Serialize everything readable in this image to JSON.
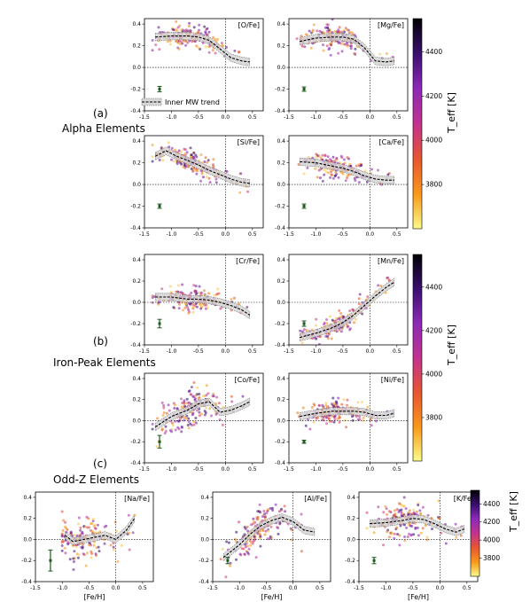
{
  "figure": {
    "groups": [
      {
        "letter": "(a)",
        "title": "Alpha Elements"
      },
      {
        "letter": "(b)",
        "title": "Iron-Peak Elements"
      },
      {
        "letter": "(c)",
        "title": "Odd-Z Elements"
      }
    ],
    "legend_label": "Inner MW trend",
    "colorbar_label": "T_eff [K]",
    "colorbar_range": [
      3600,
      4550
    ],
    "colorbar_colors": [
      "#000004",
      "#3b0f70",
      "#8c29b8",
      "#c2328f",
      "#e8562f",
      "#f99b1b",
      "#fcfc8a"
    ]
  },
  "chart_data": [
    {
      "type": "scatter",
      "element": "[O/Fe]",
      "xlabel": "",
      "xlim": [
        -1.5,
        0.7
      ],
      "ylim": [
        -0.4,
        0.45
      ],
      "xticks": [
        "-1.5",
        "-1.0",
        "-0.5",
        "0.0",
        "0.5"
      ],
      "yticks": [
        "-0.4",
        "-0.2",
        "0.0",
        "0.2",
        "0.4"
      ],
      "trend": {
        "x": [
          -1.3,
          -1.0,
          -0.7,
          -0.5,
          -0.3,
          -0.1,
          0.1,
          0.3,
          0.45
        ],
        "y": [
          0.28,
          0.29,
          0.29,
          0.28,
          0.25,
          0.17,
          0.09,
          0.06,
          0.05
        ]
      },
      "error_bar": {
        "x": -1.22,
        "y": -0.2,
        "err": 0.025
      }
    },
    {
      "type": "scatter",
      "element": "[Mg/Fe]",
      "xlabel": "",
      "xlim": [
        -1.5,
        0.7
      ],
      "ylim": [
        -0.4,
        0.45
      ],
      "xticks": [
        "-1.5",
        "-1.0",
        "-0.5",
        "0.0",
        "0.5"
      ],
      "yticks": [
        "-0.4",
        "-0.2",
        "0.0",
        "0.2",
        "0.4"
      ],
      "trend": {
        "x": [
          -1.3,
          -1.0,
          -0.7,
          -0.5,
          -0.3,
          -0.1,
          0.1,
          0.3,
          0.45
        ],
        "y": [
          0.24,
          0.27,
          0.28,
          0.28,
          0.26,
          0.18,
          0.06,
          0.05,
          0.06
        ]
      },
      "error_bar": {
        "x": -1.22,
        "y": -0.2,
        "err": 0.02
      }
    },
    {
      "type": "scatter",
      "element": "[Si/Fe]",
      "xlabel": "",
      "xlim": [
        -1.5,
        0.7
      ],
      "ylim": [
        -0.4,
        0.45
      ],
      "xticks": [
        "-1.5",
        "-1.0",
        "-0.5",
        "0.0",
        "0.5"
      ],
      "yticks": [
        "-0.4",
        "-0.2",
        "0.0",
        "0.2",
        "0.4"
      ],
      "trend": {
        "x": [
          -1.3,
          -1.1,
          -0.9,
          -0.7,
          -0.5,
          -0.3,
          -0.1,
          0.1,
          0.3,
          0.45
        ],
        "y": [
          0.26,
          0.31,
          0.26,
          0.22,
          0.18,
          0.13,
          0.09,
          0.05,
          0.02,
          0.01
        ]
      },
      "error_bar": {
        "x": -1.22,
        "y": -0.2,
        "err": 0.02
      }
    },
    {
      "type": "scatter",
      "element": "[Ca/Fe]",
      "xlabel": "",
      "xlim": [
        -1.5,
        0.7
      ],
      "ylim": [
        -0.4,
        0.45
      ],
      "xticks": [
        "-1.5",
        "-1.0",
        "-0.5",
        "0.0",
        "0.5"
      ],
      "yticks": [
        "-0.4",
        "-0.2",
        "0.0",
        "0.2",
        "0.4"
      ],
      "trend": {
        "x": [
          -1.3,
          -1.0,
          -0.7,
          -0.5,
          -0.3,
          -0.1,
          0.1,
          0.3,
          0.45
        ],
        "y": [
          0.21,
          0.2,
          0.17,
          0.15,
          0.12,
          0.08,
          0.05,
          0.04,
          0.04
        ]
      },
      "error_bar": {
        "x": -1.22,
        "y": -0.2,
        "err": 0.02
      }
    },
    {
      "type": "scatter",
      "element": "[Cr/Fe]",
      "xlabel": "",
      "xlim": [
        -1.5,
        0.7
      ],
      "ylim": [
        -0.4,
        0.45
      ],
      "xticks": [
        "-1.5",
        "-1.0",
        "-0.5",
        "0.0",
        "0.5"
      ],
      "yticks": [
        "-0.4",
        "-0.2",
        "0.0",
        "0.2",
        "0.4"
      ],
      "trend": {
        "x": [
          -1.3,
          -1.0,
          -0.7,
          -0.5,
          -0.3,
          -0.1,
          0.1,
          0.3,
          0.45
        ],
        "y": [
          0.05,
          0.05,
          0.03,
          0.03,
          0.02,
          0.0,
          -0.03,
          -0.07,
          -0.12
        ]
      },
      "error_bar": {
        "x": -1.22,
        "y": -0.2,
        "err": 0.04
      }
    },
    {
      "type": "scatter",
      "element": "[Mn/Fe]",
      "xlabel": "",
      "xlim": [
        -1.5,
        0.7
      ],
      "ylim": [
        -0.4,
        0.45
      ],
      "xticks": [
        "-1.5",
        "-1.0",
        "-0.5",
        "0.0",
        "0.5"
      ],
      "yticks": [
        "-0.4",
        "-0.2",
        "0.0",
        "0.2",
        "0.4"
      ],
      "trend": {
        "x": [
          -1.3,
          -1.0,
          -0.7,
          -0.5,
          -0.3,
          -0.1,
          0.1,
          0.3,
          0.45
        ],
        "y": [
          -0.33,
          -0.29,
          -0.24,
          -0.19,
          -0.12,
          -0.03,
          0.06,
          0.14,
          0.19
        ]
      },
      "error_bar": {
        "x": -1.22,
        "y": -0.2,
        "err": 0.025
      }
    },
    {
      "type": "scatter",
      "element": "[Co/Fe]",
      "xlabel": "",
      "xlim": [
        -1.5,
        0.7
      ],
      "ylim": [
        -0.4,
        0.45
      ],
      "xticks": [
        "-1.5",
        "-1.0",
        "-0.5",
        "0.0",
        "0.5"
      ],
      "yticks": [
        "-0.4",
        "-0.2",
        "0.0",
        "0.2",
        "0.4"
      ],
      "trend": {
        "x": [
          -1.3,
          -1.0,
          -0.7,
          -0.5,
          -0.3,
          -0.1,
          0.1,
          0.3,
          0.45
        ],
        "y": [
          -0.06,
          0.04,
          0.1,
          0.16,
          0.18,
          0.08,
          0.1,
          0.14,
          0.18
        ]
      },
      "error_bar": {
        "x": -1.22,
        "y": -0.2,
        "err": 0.06
      }
    },
    {
      "type": "scatter",
      "element": "[Ni/Fe]",
      "xlabel": "",
      "xlim": [
        -1.5,
        0.7
      ],
      "ylim": [
        -0.4,
        0.45
      ],
      "xticks": [
        "-1.5",
        "-1.0",
        "-0.5",
        "0.0",
        "0.5"
      ],
      "yticks": [
        "-0.4",
        "-0.2",
        "0.0",
        "0.2",
        "0.4"
      ],
      "trend": {
        "x": [
          -1.3,
          -1.0,
          -0.7,
          -0.5,
          -0.3,
          -0.1,
          0.1,
          0.3,
          0.45
        ],
        "y": [
          0.04,
          0.07,
          0.09,
          0.09,
          0.09,
          0.08,
          0.05,
          0.05,
          0.07
        ]
      },
      "error_bar": {
        "x": -1.22,
        "y": -0.2,
        "err": 0.015
      }
    },
    {
      "type": "scatter",
      "element": "[Na/Fe]",
      "xlabel": "[Fe/H]",
      "xlim": [
        -1.5,
        0.7
      ],
      "ylim": [
        -0.4,
        0.45
      ],
      "xticks": [
        "-1.5",
        "-1.0",
        "-0.5",
        "0.0",
        "0.5"
      ],
      "yticks": [
        "-0.4",
        "-0.2",
        "0.0",
        "0.2",
        "0.4"
      ],
      "trend": {
        "x": [
          -0.95,
          -0.8,
          -0.6,
          -0.4,
          -0.2,
          0.0,
          0.2,
          0.35
        ],
        "y": [
          0.04,
          -0.02,
          0.0,
          0.02,
          0.04,
          0.0,
          0.09,
          0.2
        ]
      },
      "error_bar": {
        "x": -1.22,
        "y": -0.2,
        "err": 0.1
      }
    },
    {
      "type": "scatter",
      "element": "[Al/Fe]",
      "xlabel": "[Fe/H]",
      "xlim": [
        -1.5,
        0.7
      ],
      "ylim": [
        -0.4,
        0.45
      ],
      "xticks": [
        "-1.5",
        "-1.0",
        "-0.5",
        "0.0",
        "0.5"
      ],
      "yticks": [
        "-0.4",
        "-0.2",
        "0.0",
        "0.2",
        "0.4"
      ],
      "trend": {
        "x": [
          -1.3,
          -1.0,
          -0.8,
          -0.6,
          -0.4,
          -0.2,
          0.0,
          0.2,
          0.4
        ],
        "y": [
          -0.17,
          -0.05,
          0.05,
          0.13,
          0.18,
          0.21,
          0.17,
          0.09,
          0.07
        ]
      },
      "error_bar": {
        "x": -1.22,
        "y": -0.2,
        "err": 0.03
      }
    },
    {
      "type": "scatter",
      "element": "[K/Fe]",
      "xlabel": "[Fe/H]",
      "xlim": [
        -1.5,
        0.7
      ],
      "ylim": [
        -0.4,
        0.45
      ],
      "xticks": [
        "-1.5",
        "-1.0",
        "-0.5",
        "0.0",
        "0.5"
      ],
      "yticks": [
        "-0.4",
        "-0.2",
        "0.0",
        "0.2",
        "0.4"
      ],
      "trend": {
        "x": [
          -1.3,
          -1.0,
          -0.7,
          -0.5,
          -0.3,
          -0.1,
          0.1,
          0.3,
          0.45
        ],
        "y": [
          0.15,
          0.16,
          0.18,
          0.2,
          0.19,
          0.15,
          0.1,
          0.07,
          0.1
        ]
      },
      "error_bar": {
        "x": -1.22,
        "y": -0.2,
        "err": 0.03
      }
    }
  ],
  "colorbars": [
    {
      "ticks": [
        "4400",
        "4200",
        "4000",
        "3800"
      ],
      "tick_values": [
        4400,
        4200,
        4000,
        3800
      ]
    },
    {
      "ticks": [
        "4400",
        "4200",
        "4000",
        "3800"
      ],
      "tick_values": [
        4400,
        4200,
        4000,
        3800
      ]
    },
    {
      "ticks": [
        "4400",
        "4200",
        "4000",
        "3800"
      ],
      "tick_values": [
        4400,
        4200,
        4000,
        3800
      ]
    }
  ]
}
